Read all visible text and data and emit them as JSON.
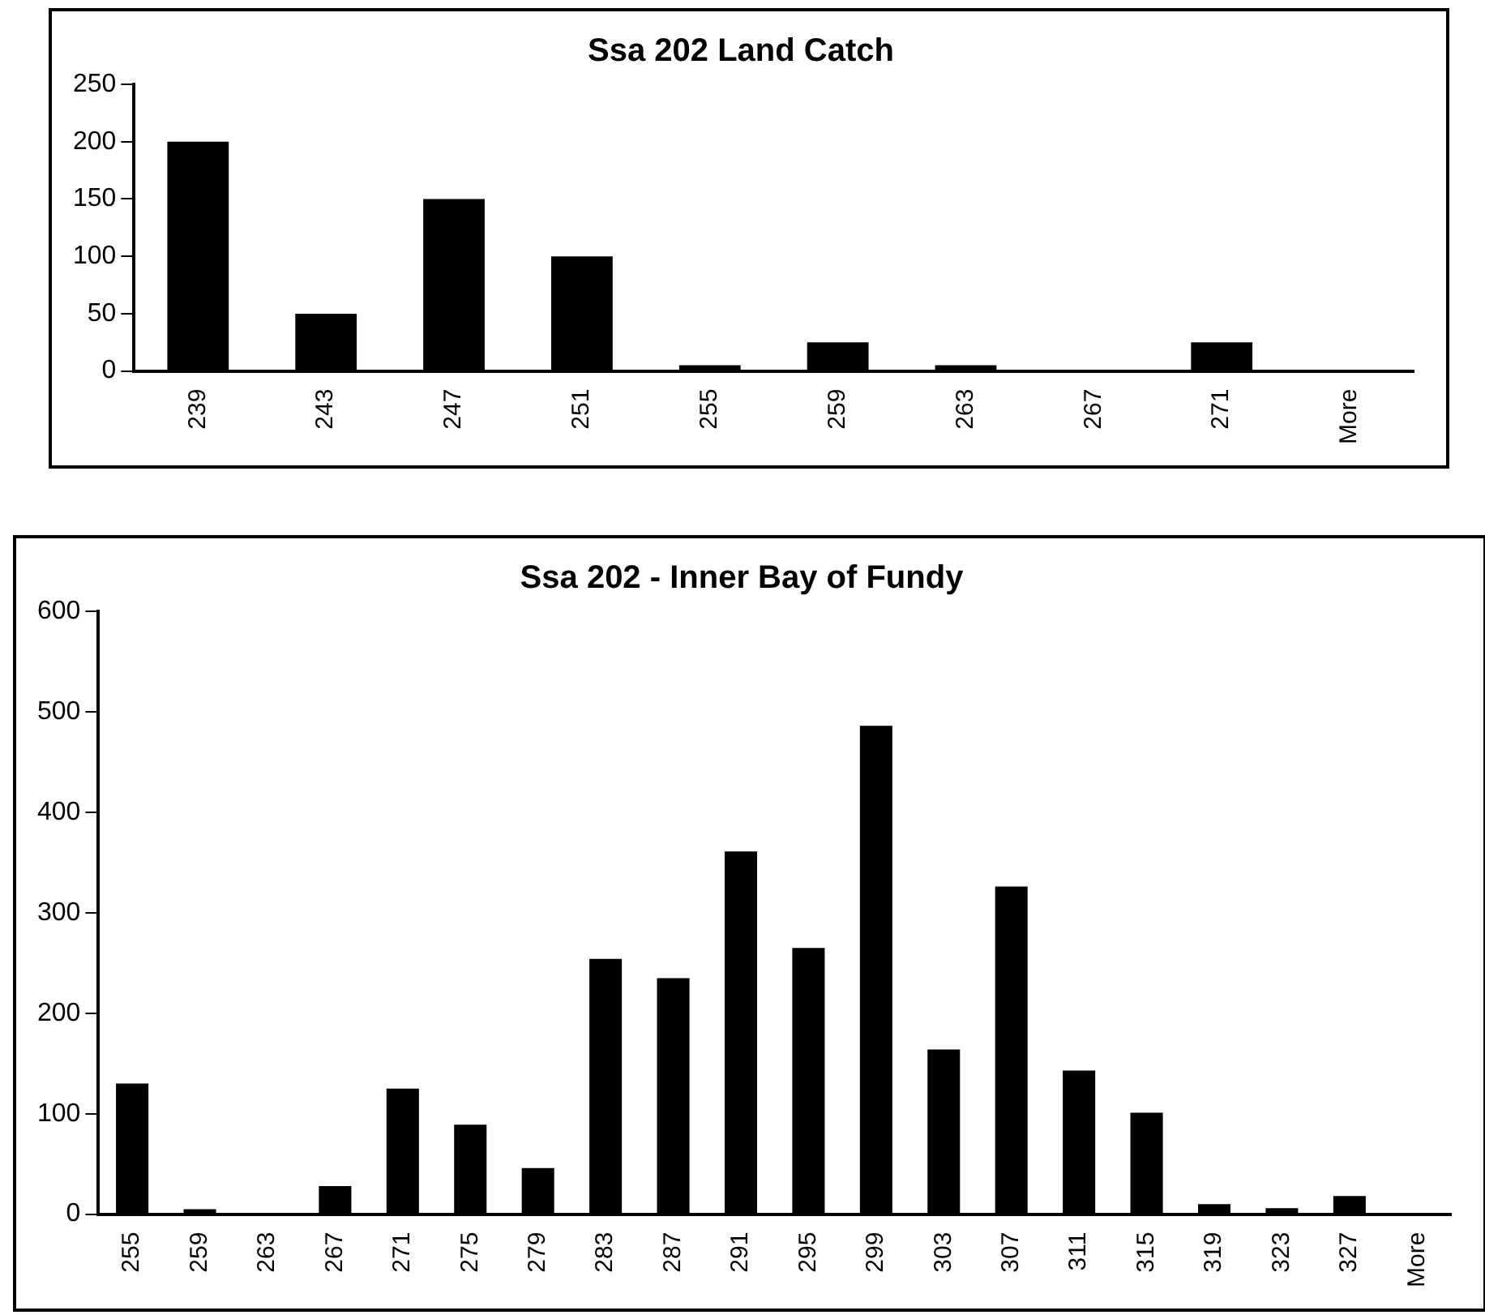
{
  "chart_data": [
    {
      "type": "bar",
      "title": "Ssa 202 Land Catch",
      "categories": [
        "239",
        "243",
        "247",
        "251",
        "255",
        "259",
        "263",
        "267",
        "271",
        "More"
      ],
      "values": [
        200,
        50,
        150,
        100,
        5,
        25,
        5,
        1,
        25,
        0
      ],
      "color": "#000000",
      "ylim": [
        0,
        250
      ],
      "yticks": [
        0,
        50,
        100,
        150,
        200,
        250
      ]
    },
    {
      "type": "bar",
      "title": "Ssa 202 - Inner Bay of Fundy",
      "categories": [
        "255",
        "259",
        "263",
        "267",
        "271",
        "275",
        "279",
        "283",
        "287",
        "291",
        "295",
        "299",
        "303",
        "307",
        "311",
        "315",
        "319",
        "323",
        "327",
        "More"
      ],
      "values": [
        130,
        5,
        0,
        28,
        125,
        89,
        46,
        254,
        235,
        361,
        265,
        486,
        164,
        326,
        143,
        101,
        10,
        6,
        18,
        0
      ],
      "color": "#000000",
      "ylim": [
        0,
        600
      ],
      "yticks": [
        0,
        100,
        200,
        300,
        400,
        500,
        600
      ]
    }
  ]
}
